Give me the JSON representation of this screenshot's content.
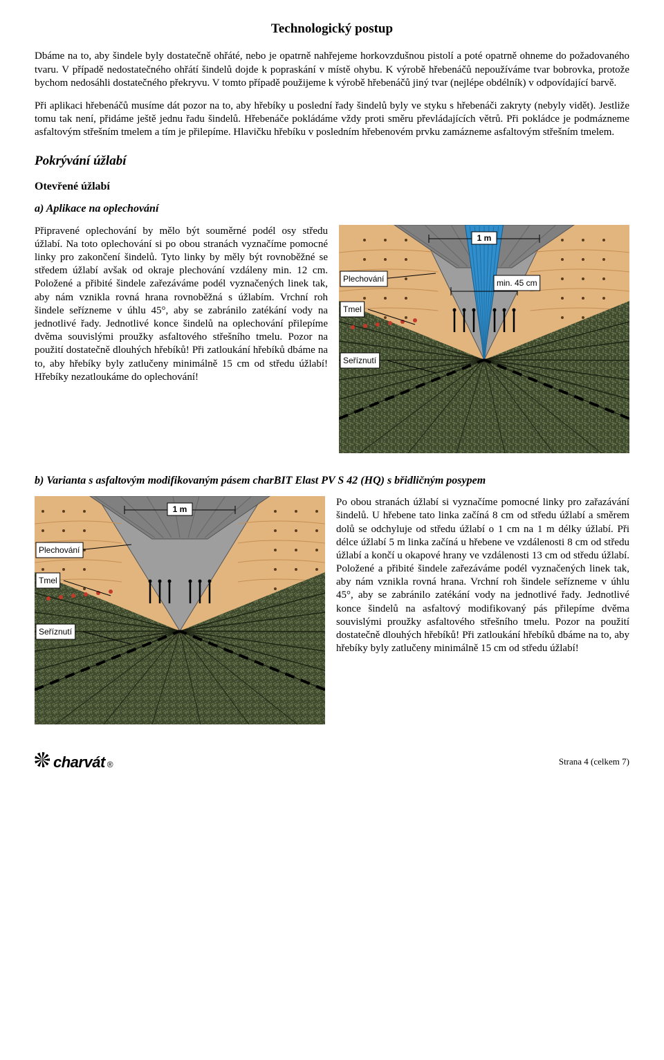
{
  "page": {
    "title": "Technologický postup",
    "p1": "Dbáme na to, aby šindele byly dostatečně ohřáté, nebo je opatrně nahřejeme horkovzdušnou pistolí a poté opatrně ohneme do požadovaného tvaru. V případě nedostatečného ohřátí šindelů dojde k popraskání v místě ohybu. K výrobě hřebenáčů nepoužíváme tvar bobrovka, protože bychom nedosáhli dostatečného překryvu. V tomto případě použijeme k výrobě hřebenáčů jiný tvar (nejlépe obdélník) v odpovídající barvě.",
    "p2": "Při aplikaci hřebenáčů musíme dát pozor na to, aby hřebíky u poslední řady šindelů byly ve styku s hřebenáči zakryty (nebyly vidět). Jestliže tomu tak není, přidáme ještě jednu řadu šindelů. Hřebenáče pokládáme vždy proti směru převládajících větrů. Při pokládce je podmázneme asfaltovým střešním tmelem a tím je přilepíme. Hlavičku hřebíku v posledním hřebenovém prvku zamázneme asfaltovým střešním tmelem.",
    "h2": "Pokrývání úžlabí",
    "h3": "Otevřené úžlabí",
    "h4a": "a) Aplikace na oplechování",
    "p3": "Připravené oplechování by mělo být souměrné podél osy středu úžlabí. Na toto oplechování si po obou stranách vyznačíme pomocné linky pro zakončení šindelů. Tyto linky by měly být rovnoběžné se středem úžlabí avšak od okraje plechování vzdáleny min. 12 cm. Položené a přibité šindele zařezáváme podél vyznačených linek tak, aby nám vznikla rovná hrana rovnoběžná s úžlabím. Vrchní roh šindele seřízneme v úhlu 45°, aby se zabránilo zatékání vody na jednotlivé řady. Jednotlivé konce šindelů na oplechování přilepíme dvěma souvislými proužky asfaltového střešního tmelu. Pozor na použití dostatečně dlouhých hřebíků! Při zatloukání hřebíků dbáme na to, aby hřebíky byly zatlučeny minimálně 15 cm od středu úžlabí! Hřebíky nezatloukáme do oplechování!",
    "h4b": "b) Varianta s asfaltovým modifikovaným pásem charBIT Elast PV S 42 (HQ) s břidličným posypem",
    "p4": "Po obou stranách úžlabí si vyznačíme pomocné linky pro zařazávání šindelů. U hřebene tato linka začíná 8 cm od středu úžlabí a směrem dolů se odchyluje od středu úžlabí o 1 cm na 1 m délky úžlabí. Při délce úžlabí 5 m linka začíná u hřebene ve vzdálenosti 8 cm od středu úžlabí a končí u okapové hrany ve vzdálenosti 13 cm od středu úžlabí. Položené a přibité šindele zařezáváme podél vyznačených linek tak, aby nám vznikla rovná hrana. Vrchní roh šindele seřízneme v úhlu 45°, aby se zabránilo zatékání vody na jednotlivé řady. Jednotlivé konce šindelů na asfaltový modifikovaný pás přilepíme dvěma souvislými proužky asfaltového střešního tmelu. Pozor na použití dostatečně dlouhých hřebíků! Při zatloukání hřebíků dbáme na to, aby hřebíky byly zatlučeny minimálně 15 cm od středu úžlabí!"
  },
  "diagram": {
    "variant_a": {
      "center_top_width": 55,
      "show_strip": true
    },
    "variant_b": {
      "center_top_width": 120,
      "show_strip": false
    },
    "labels": {
      "one_m": "1 m",
      "plechovani": "Plechování",
      "tmel": "Tmel",
      "seriznuti": "Seříznutí",
      "min45": "min. 45 cm"
    },
    "colors": {
      "underlay": "#e2b57e",
      "shingle_dark": "#3f4a2e",
      "shingle_light": "#6a7850",
      "metal_valley": "#9e9e9e",
      "water_strip": "#2f8ecb",
      "ridge_gray": "#808080",
      "dim_line": "#000000",
      "label_box_bg": "#ffffff",
      "label_box_border": "#000000",
      "nail": "#000000",
      "guide_dash": "#000000",
      "border": "#666666"
    },
    "label_fontsize": 12
  },
  "footer": {
    "logo_text": "charvát",
    "page_label": "Strana 4 (celkem 7)"
  }
}
